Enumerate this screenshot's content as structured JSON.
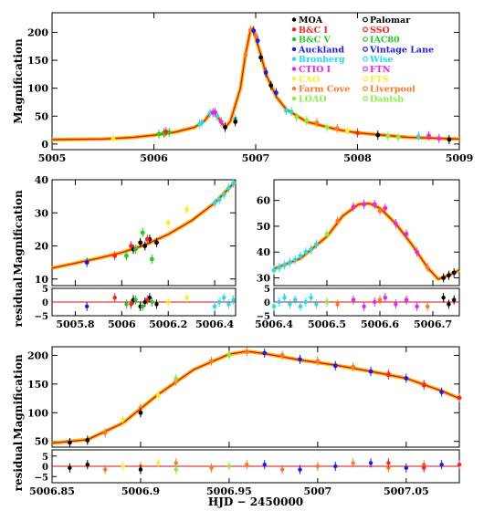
{
  "figure": {
    "xlabel_bottom": "HJD − 2450000"
  },
  "legend": {
    "col1": [
      {
        "label": "MOA",
        "color": "#000000",
        "marker": "filled"
      },
      {
        "label": "B&C I",
        "color": "#ff2020",
        "marker": "filled"
      },
      {
        "label": "B&C V",
        "color": "#22cc22",
        "marker": "filled"
      },
      {
        "label": "Auckland",
        "color": "#1a1aee",
        "marker": "filled"
      },
      {
        "label": "Bronberg",
        "color": "#22ddee",
        "marker": "filled"
      },
      {
        "label": "CTIO I",
        "color": "#ee22ee",
        "marker": "filled"
      },
      {
        "label": "CAO",
        "color": "#ffee22",
        "marker": "filled"
      },
      {
        "label": "Farm Cove",
        "color": "#ff7722",
        "marker": "filled"
      },
      {
        "label": "LOAO",
        "color": "#88ee44",
        "marker": "filled"
      }
    ],
    "col2": [
      {
        "label": "Palomar",
        "color": "#000000",
        "marker": "open"
      },
      {
        "label": "SSO",
        "color": "#ff2020",
        "marker": "open"
      },
      {
        "label": "IAC80",
        "color": "#22cc22",
        "marker": "open"
      },
      {
        "label": "Vintage Lane",
        "color": "#1a1aee",
        "marker": "open"
      },
      {
        "label": "Wise",
        "color": "#22ddee",
        "marker": "open"
      },
      {
        "label": "FTN",
        "color": "#ee22ee",
        "marker": "open"
      },
      {
        "label": "FTS",
        "color": "#ffee22",
        "marker": "open"
      },
      {
        "label": "Liverpool",
        "color": "#ff7722",
        "marker": "open"
      },
      {
        "label": "Danish",
        "color": "#88ee44",
        "marker": "open"
      }
    ]
  },
  "chart_data": [
    {
      "type": "scatter",
      "panel": "top",
      "ylabel": "Magnification",
      "xlim": [
        5005,
        5009
      ],
      "ylim": [
        -10,
        235
      ],
      "xticks": [
        "5005",
        "5006",
        "5007",
        "5008",
        "5009"
      ],
      "yticks": [
        "0",
        "50",
        "100",
        "150",
        "200"
      ],
      "model_curve": {
        "x": [
          5005.0,
          5005.5,
          5005.8,
          5006.0,
          5006.2,
          5006.4,
          5006.5,
          5006.56,
          5006.6,
          5006.65,
          5006.7,
          5006.75,
          5006.85,
          5006.9,
          5006.95,
          5006.97,
          5007.0,
          5007.05,
          5007.1,
          5007.2,
          5007.3,
          5007.5,
          5007.8,
          5008.0,
          5008.5,
          5009.0
        ],
        "y": [
          8,
          9,
          12,
          16,
          21,
          30,
          42,
          57,
          58,
          42,
          30,
          40,
          100,
          160,
          205,
          207,
          190,
          160,
          125,
          85,
          62,
          40,
          26,
          20,
          12,
          9
        ]
      },
      "series": [
        {
          "color": "#22ddee",
          "x": [
            5006.45,
            5006.47,
            5006.55,
            5006.62,
            5006.8,
            5007.3,
            5007.35,
            5008.6
          ],
          "y": [
            36,
            38,
            55,
            50,
            45,
            60,
            58,
            14
          ]
        },
        {
          "color": "#ff7722",
          "x": [
            5006.9,
            5006.95,
            5007.0,
            5007.1,
            5007.2,
            5007.5,
            5007.6,
            5007.8
          ],
          "y": [
            160,
            204,
            195,
            130,
            90,
            42,
            38,
            28
          ]
        },
        {
          "color": "#000000",
          "x": [
            5006.1,
            5006.7,
            5006.8,
            5007.05,
            5007.15,
            5008.2,
            5008.9
          ],
          "y": [
            20,
            30,
            40,
            155,
            105,
            16,
            8
          ]
        },
        {
          "color": "#1a1aee",
          "x": [
            5006.98,
            5007.02,
            5007.1,
            5007.2
          ],
          "y": [
            203,
            185,
            128,
            92
          ]
        },
        {
          "color": "#ee22ee",
          "x": [
            5006.58,
            5006.6,
            5006.66,
            5008.7,
            5008.8
          ],
          "y": [
            56,
            57,
            40,
            15,
            10
          ]
        },
        {
          "color": "#88ee44",
          "x": [
            5007.4,
            5007.5,
            5007.7,
            5008.3,
            5008.4
          ],
          "y": [
            48,
            42,
            30,
            14,
            12
          ]
        },
        {
          "color": "#22cc22",
          "x": [
            5006.05,
            5006.1,
            5006.15
          ],
          "y": [
            18,
            20,
            21
          ]
        },
        {
          "color": "#ffee22",
          "x": [
            5005.6,
            5007.9
          ],
          "y": [
            10,
            24
          ]
        },
        {
          "color": "#ff2020",
          "x": [
            5006.12,
            5008.0
          ],
          "y": [
            22,
            20
          ]
        }
      ]
    },
    {
      "type": "scatter",
      "panel": "middle-left",
      "ylabel": "Magnification",
      "xlim": [
        5005.7,
        5006.49
      ],
      "ylim": [
        8,
        40
      ],
      "yticks": [
        "10",
        "20",
        "30",
        "40"
      ],
      "xticks": [
        "5005.8",
        "5006",
        "5006.2",
        "5006.4"
      ],
      "model_curve": {
        "x": [
          5005.7,
          5005.8,
          5005.9,
          5006.0,
          5006.1,
          5006.2,
          5006.3,
          5006.4,
          5006.49
        ],
        "y": [
          13.3,
          14.8,
          16.3,
          18.0,
          20.3,
          23.5,
          27.6,
          33.0,
          39.5
        ]
      },
      "series": [
        {
          "color": "#22ddee",
          "x": [
            5006.4,
            5006.42,
            5006.44,
            5006.46,
            5006.48
          ],
          "y": [
            33,
            34,
            35.5,
            37.5,
            39
          ]
        },
        {
          "color": "#000000",
          "x": [
            5006.05,
            5006.08,
            5006.1,
            5006.12,
            5006.15
          ],
          "y": [
            19,
            21,
            20,
            22,
            21
          ]
        },
        {
          "color": "#22cc22",
          "x": [
            5006.02,
            5006.06,
            5006.09,
            5006.13
          ],
          "y": [
            17,
            19,
            24,
            16
          ]
        },
        {
          "color": "#ff2020",
          "x": [
            5005.97,
            5006.04,
            5006.11
          ],
          "y": [
            17,
            20,
            22
          ]
        },
        {
          "color": "#ffee22",
          "x": [
            5006.2,
            5006.28
          ],
          "y": [
            27,
            31
          ]
        },
        {
          "color": "#1a1aee",
          "x": [
            5005.85
          ],
          "y": [
            15
          ]
        }
      ],
      "residual_ylabel": "residual",
      "residual_yticks": [
        "5",
        "0",
        "−5"
      ],
      "residual_ylim": [
        -5,
        5
      ]
    },
    {
      "type": "scatter",
      "panel": "middle-right",
      "xlim": [
        5006.4,
        5006.75
      ],
      "ylim": [
        27,
        68
      ],
      "yticks": [
        "30",
        "40",
        "50",
        "60"
      ],
      "xticks": [
        "5006.4",
        "5006.5",
        "5006.6",
        "5006.7"
      ],
      "model_curve": {
        "x": [
          5006.4,
          5006.45,
          5006.5,
          5006.53,
          5006.56,
          5006.58,
          5006.6,
          5006.63,
          5006.66,
          5006.69,
          5006.71,
          5006.73,
          5006.75
        ],
        "y": [
          33.5,
          37.5,
          46,
          54,
          58.5,
          58.8,
          57,
          51,
          43,
          34,
          29.5,
          31,
          33
        ]
      },
      "series": [
        {
          "color": "#22ddee",
          "x": [
            5006.4,
            5006.41,
            5006.42,
            5006.43,
            5006.44,
            5006.45,
            5006.46,
            5006.47,
            5006.48
          ],
          "y": [
            33,
            34,
            35,
            36,
            37,
            38.5,
            40,
            41,
            43
          ]
        },
        {
          "color": "#ee22ee",
          "x": [
            5006.55,
            5006.57,
            5006.59,
            5006.61,
            5006.63,
            5006.65,
            5006.67
          ],
          "y": [
            57.5,
            58.5,
            58.5,
            57,
            51,
            47,
            40
          ]
        },
        {
          "color": "#ff7722",
          "x": [
            5006.52,
            5006.6,
            5006.69
          ],
          "y": [
            52,
            56,
            34
          ]
        },
        {
          "color": "#000000",
          "x": [
            5006.72,
            5006.73,
            5006.74
          ],
          "y": [
            30,
            31,
            32
          ]
        },
        {
          "color": "#88ee44",
          "x": [
            5006.5
          ],
          "y": [
            47
          ]
        }
      ],
      "residual_yticks": [
        "5",
        "0",
        "−5"
      ],
      "residual_ylim": [
        -5,
        5
      ]
    },
    {
      "type": "scatter",
      "panel": "bottom",
      "ylabel": "Magnification",
      "xlim": [
        5006.85,
        5007.08
      ],
      "ylim": [
        40,
        215
      ],
      "yticks": [
        "50",
        "100",
        "150",
        "200"
      ],
      "xticks": [
        "5006.85",
        "5006.9",
        "5006.95",
        "5007",
        "5007.05"
      ],
      "model_curve": {
        "x": [
          5006.85,
          5006.87,
          5006.89,
          5006.91,
          5006.93,
          5006.95,
          5006.96,
          5006.97,
          5006.99,
          5007.01,
          5007.03,
          5007.05,
          5007.07,
          5007.08
        ],
        "y": [
          47,
          53,
          82,
          132,
          175,
          202,
          207,
          203,
          192,
          183,
          172,
          160,
          138,
          125
        ]
      },
      "series": [
        {
          "color": "#ff7722",
          "x": [
            5006.88,
            5006.9,
            5006.92,
            5006.94,
            5006.96,
            5006.98,
            5007.0,
            5007.02,
            5007.04,
            5007.06
          ],
          "y": [
            65,
            108,
            155,
            190,
            206,
            200,
            190,
            180,
            168,
            150
          ]
        },
        {
          "color": "#1a1aee",
          "x": [
            5006.97,
            5006.99,
            5007.01,
            5007.03,
            5007.05,
            5007.07
          ],
          "y": [
            204,
            193,
            182,
            172,
            160,
            136
          ]
        },
        {
          "color": "#000000",
          "x": [
            5006.86,
            5006.87,
            5006.9
          ],
          "y": [
            48,
            52,
            100
          ]
        },
        {
          "color": "#ff2020",
          "x": [
            5007.04,
            5007.06,
            5007.08
          ],
          "y": [
            166,
            148,
            126
          ]
        },
        {
          "color": "#ffee22",
          "x": [
            5006.89,
            5006.91
          ],
          "y": [
            88,
            130
          ]
        },
        {
          "color": "#88ee44",
          "x": [
            5006.92,
            5006.95
          ],
          "y": [
            160,
            200
          ]
        }
      ],
      "residual_ylabel": "residual",
      "residual_yticks": [
        "5",
        "0",
        "−5"
      ],
      "residual_ylim": [
        -8,
        8
      ]
    }
  ]
}
